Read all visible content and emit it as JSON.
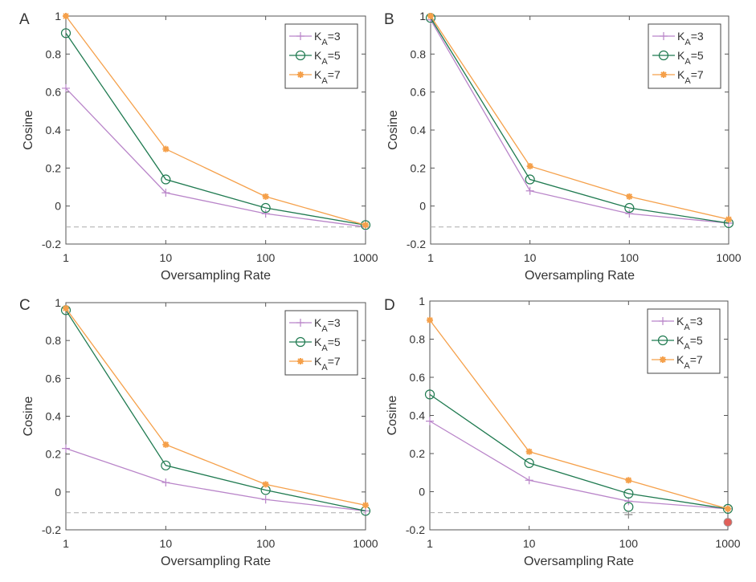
{
  "chart_data": [
    {
      "panel_label": "A",
      "type": "line",
      "xlabel": "Oversampling Rate",
      "ylabel": "Cosine",
      "x": [
        1,
        10,
        100,
        1000
      ],
      "xscale": "log",
      "xticks": [
        "1",
        "10",
        "100",
        "1000"
      ],
      "yticks": [
        "-0.2",
        "0",
        "0.2",
        "0.4",
        "0.6",
        "0.8",
        "1"
      ],
      "ylim": [
        -0.2,
        1
      ],
      "legend_position": "top-right",
      "grid": false,
      "baseline": -0.11,
      "series": [
        {
          "name": "K",
          "sub": "A",
          "suffix": "=3",
          "marker": "plus",
          "color": "#b985c9",
          "values": [
            0.62,
            0.07,
            -0.04,
            -0.11
          ]
        },
        {
          "name": "K",
          "sub": "A",
          "suffix": "=5",
          "marker": "circle",
          "color": "#1f7a50",
          "values": [
            0.91,
            0.14,
            -0.01,
            -0.1
          ]
        },
        {
          "name": "K",
          "sub": "A",
          "suffix": "=7",
          "marker": "star",
          "color": "#f5a04a",
          "values": [
            1.0,
            0.3,
            0.05,
            -0.1
          ]
        }
      ]
    },
    {
      "panel_label": "B",
      "type": "line",
      "xlabel": "Oversampling Rate",
      "ylabel": "Cosine",
      "x": [
        1,
        10,
        100,
        1000
      ],
      "xscale": "log",
      "xticks": [
        "1",
        "10",
        "100",
        "1000"
      ],
      "yticks": [
        "-0.2",
        "0",
        "0.2",
        "0.4",
        "0.6",
        "0.8",
        "1"
      ],
      "ylim": [
        -0.2,
        1
      ],
      "legend_position": "top-right",
      "grid": false,
      "baseline": -0.11,
      "series": [
        {
          "name": "K",
          "sub": "A",
          "suffix": "=3",
          "marker": "plus",
          "color": "#b985c9",
          "values": [
            0.98,
            0.08,
            -0.04,
            -0.09
          ]
        },
        {
          "name": "K",
          "sub": "A",
          "suffix": "=5",
          "marker": "circle",
          "color": "#1f7a50",
          "values": [
            0.99,
            0.14,
            -0.01,
            -0.09
          ]
        },
        {
          "name": "K",
          "sub": "A",
          "suffix": "=7",
          "marker": "star",
          "color": "#f5a04a",
          "values": [
            1.0,
            0.21,
            0.05,
            -0.07
          ]
        }
      ]
    },
    {
      "panel_label": "C",
      "type": "line",
      "xlabel": "Oversampling Rate",
      "ylabel": "Cosine",
      "x": [
        1,
        10,
        100,
        1000
      ],
      "xscale": "log",
      "xticks": [
        "1",
        "10",
        "100",
        "1000"
      ],
      "yticks": [
        "-0.2",
        "0",
        "0.2",
        "0.4",
        "0.6",
        "0.8",
        "1"
      ],
      "ylim": [
        -0.2,
        1
      ],
      "legend_position": "top-right",
      "grid": false,
      "baseline": -0.11,
      "series": [
        {
          "name": "K",
          "sub": "A",
          "suffix": "=3",
          "marker": "plus",
          "color": "#b985c9",
          "values": [
            0.23,
            0.05,
            -0.04,
            -0.1
          ]
        },
        {
          "name": "K",
          "sub": "A",
          "suffix": "=5",
          "marker": "circle",
          "color": "#1f7a50",
          "values": [
            0.96,
            0.14,
            0.01,
            -0.1
          ]
        },
        {
          "name": "K",
          "sub": "A",
          "suffix": "=7",
          "marker": "star",
          "color": "#f5a04a",
          "values": [
            0.97,
            0.25,
            0.04,
            -0.07
          ]
        }
      ]
    },
    {
      "panel_label": "D",
      "type": "line",
      "xlabel": "Oversampling Rate",
      "ylabel": "Cosine",
      "x": [
        1,
        10,
        100,
        1000
      ],
      "xscale": "log",
      "xticks": [
        "1",
        "10",
        "100",
        "1000"
      ],
      "yticks": [
        "-0.2",
        "0",
        "0.2",
        "0.4",
        "0.6",
        "0.8",
        "1"
      ],
      "ylim": [
        -0.2,
        1
      ],
      "legend_position": "top-right",
      "grid": false,
      "baseline": -0.11,
      "series": [
        {
          "name": "K",
          "sub": "A",
          "suffix": "=3",
          "marker": "plus",
          "color": "#b985c9",
          "values": [
            0.37,
            0.06,
            -0.05,
            -0.09
          ]
        },
        {
          "name": "K",
          "sub": "A",
          "suffix": "=5",
          "marker": "circle",
          "color": "#1f7a50",
          "values": [
            0.51,
            0.15,
            -0.01,
            -0.09
          ]
        },
        {
          "name": "K",
          "sub": "A",
          "suffix": "=7",
          "marker": "star",
          "color": "#f5a04a",
          "values": [
            0.9,
            0.21,
            0.06,
            -0.09
          ]
        }
      ],
      "extra_markers": [
        {
          "x": 100,
          "y": -0.08,
          "marker": "circle",
          "color": "#1f7a50"
        },
        {
          "x": 100,
          "y": -0.12,
          "marker": "plus",
          "color": "#888888"
        },
        {
          "x": 1000,
          "y": -0.16,
          "marker": "dot",
          "color": "#e0605a"
        }
      ]
    }
  ]
}
